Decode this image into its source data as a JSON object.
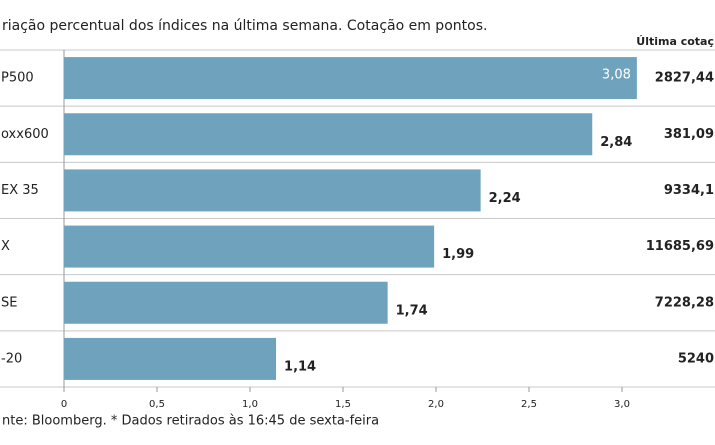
{
  "chart_data": {
    "type": "bar",
    "orientation": "horizontal",
    "title": "riação percentual dos índices na última semana. Cotação em pontos.",
    "categories": [
      "P500",
      "oxx600",
      "EX 35",
      "X",
      "SE",
      "-20"
    ],
    "values": [
      3.08,
      2.84,
      2.24,
      1.99,
      1.74,
      1.14
    ],
    "value_labels": [
      "3,08",
      "2,84",
      "2,24",
      "1,99",
      "1,74",
      "1,14"
    ],
    "color": "#6fa3bd",
    "xlim": [
      0,
      3.1
    ],
    "xticks": [
      0,
      {
        "value": 0.5,
        "label": "0,5"
      },
      {
        "value": 1,
        "label": "1,0"
      },
      {
        "value": 1.5,
        "label": "1,5"
      },
      {
        "value": 2,
        "label": "2,0"
      },
      {
        "value": 2.5,
        "label": "2,5"
      },
      {
        "value": 3,
        "label": "3,0"
      }
    ],
    "side_header": "Última cotaç",
    "side_values": [
      "2827,44",
      "381,09",
      "9334,1",
      "11685,69",
      "7228,28",
      "5240"
    ],
    "source": "nte: Bloomberg.  * Dados retirados às 16:45 de sexta-feira"
  }
}
